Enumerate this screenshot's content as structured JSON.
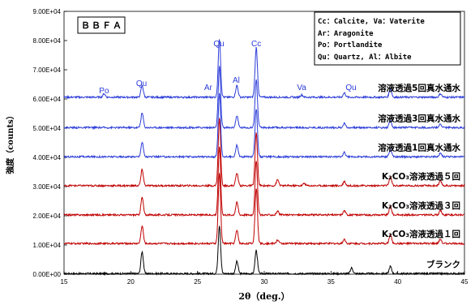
{
  "chart_data": {
    "type": "line",
    "sample_label": "ＢＢＦＡ",
    "xlabel": "2θ（deg.）",
    "ylabel": "強度（counts）",
    "xlim": [
      15,
      45
    ],
    "ylim": [
      0,
      90000
    ],
    "x_ticks": [
      "15",
      "20",
      "25",
      "30",
      "35",
      "40",
      "45"
    ],
    "y_ticks": [
      "0.00E+00",
      "1.00E+04",
      "2.00E+04",
      "3.00E+04",
      "4.00E+04",
      "5.00E+04",
      "6.00E+04",
      "7.00E+04",
      "8.00E+04",
      "9.00E+04"
    ],
    "legend_lines": [
      "Cc：Calcite, Va：Vaterite",
      "Ar：Aragonite",
      "Po：Portlandite",
      "Qu：Quartz, Al：Albite"
    ],
    "peak_labels": [
      {
        "text": "Po",
        "x": 18.0,
        "y": 62000
      },
      {
        "text": "Qu",
        "x": 20.8,
        "y": 64500
      },
      {
        "text": "Ar",
        "x": 25.8,
        "y": 63000
      },
      {
        "text": "Qu",
        "x": 26.6,
        "y": 78000
      },
      {
        "text": "Al",
        "x": 27.9,
        "y": 65500
      },
      {
        "text": "Cc",
        "x": 29.4,
        "y": 78000
      },
      {
        "text": "Va",
        "x": 32.8,
        "y": 63000
      },
      {
        "text": "Qu",
        "x": 36.5,
        "y": 63000
      }
    ],
    "series": [
      {
        "name": "ブランク",
        "color": "#000000",
        "baseline": 200,
        "peaks": [
          [
            20.85,
            7500
          ],
          [
            26.64,
            16500
          ],
          [
            27.95,
            4200
          ],
          [
            29.4,
            8000
          ],
          [
            36.55,
            2000
          ],
          [
            39.45,
            2500
          ]
        ]
      },
      {
        "name": "K₂CO₃溶液透過１回",
        "color": "#c00000",
        "baseline": 10500,
        "peaks": [
          [
            20.85,
            6000
          ],
          [
            26.64,
            24000
          ],
          [
            27.95,
            4500
          ],
          [
            29.4,
            19000
          ],
          [
            31.0,
            1200
          ],
          [
            36.0,
            1500
          ],
          [
            39.45,
            3000
          ],
          [
            43.2,
            1500
          ]
        ]
      },
      {
        "name": "K₂CO₃溶液透過３回",
        "color": "#c00000",
        "baseline": 20300,
        "peaks": [
          [
            20.85,
            6000
          ],
          [
            26.64,
            23500
          ],
          [
            27.95,
            4300
          ],
          [
            29.4,
            18500
          ],
          [
            31.0,
            1200
          ],
          [
            36.0,
            1500
          ],
          [
            39.45,
            3000
          ],
          [
            43.2,
            1500
          ]
        ]
      },
      {
        "name": "K₂CO₃溶液透過５回",
        "color": "#c00000",
        "baseline": 30300,
        "peaks": [
          [
            20.85,
            5500
          ],
          [
            26.64,
            23000
          ],
          [
            27.95,
            4300
          ],
          [
            29.4,
            18000
          ],
          [
            31.0,
            2000
          ],
          [
            33.0,
            800
          ],
          [
            36.0,
            1500
          ],
          [
            39.45,
            3000
          ],
          [
            43.2,
            1500
          ]
        ]
      },
      {
        "name": "溶液透過1回真水通水",
        "color": "#2a3bd8",
        "baseline": 40200,
        "peaks": [
          [
            20.85,
            5000
          ],
          [
            26.64,
            22000
          ],
          [
            27.95,
            4000
          ],
          [
            29.4,
            16500
          ],
          [
            36.0,
            1500
          ],
          [
            39.45,
            2500
          ],
          [
            43.2,
            1200
          ]
        ]
      },
      {
        "name": "溶液透過3回真水通水",
        "color": "#2a3bd8",
        "baseline": 50200,
        "peaks": [
          [
            20.85,
            5000
          ],
          [
            26.64,
            21000
          ],
          [
            27.95,
            4000
          ],
          [
            29.4,
            16500
          ],
          [
            36.0,
            1500
          ],
          [
            39.45,
            2500
          ],
          [
            43.2,
            1200
          ]
        ]
      },
      {
        "name": "溶液透過5回真水通水",
        "color": "#2a3bd8",
        "baseline": 60600,
        "peaks": [
          [
            18.0,
            1200
          ],
          [
            20.85,
            4000
          ],
          [
            26.64,
            20000
          ],
          [
            27.95,
            4000
          ],
          [
            29.4,
            17000
          ],
          [
            32.8,
            800
          ],
          [
            36.0,
            1500
          ],
          [
            39.45,
            3000
          ],
          [
            43.2,
            1200
          ]
        ]
      }
    ]
  }
}
